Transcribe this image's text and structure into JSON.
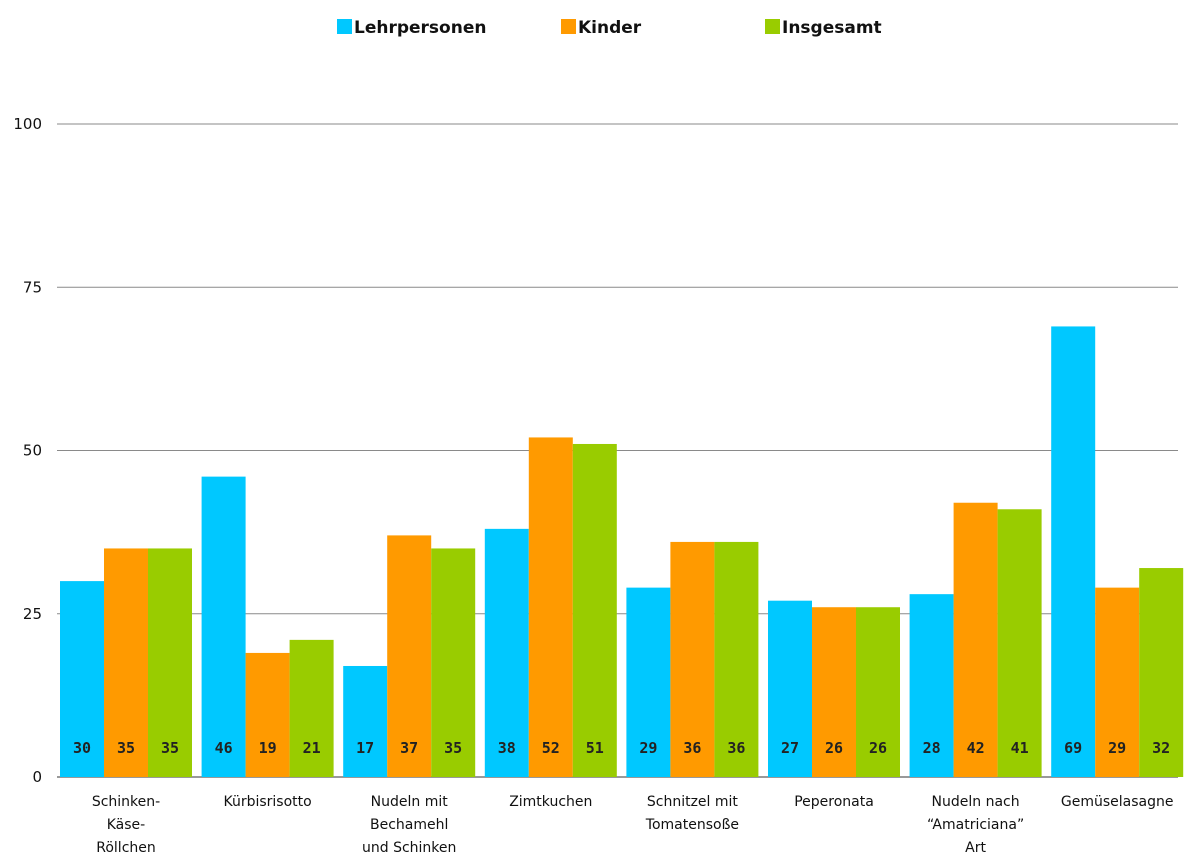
{
  "chart_data": {
    "type": "bar",
    "categories": [
      [
        "Schinken-",
        "Käse-",
        "Röllchen"
      ],
      [
        "Kürbisrisotto"
      ],
      [
        "Nudeln  mit",
        "Bechamehl",
        "und Schinken"
      ],
      [
        "Zimtkuchen"
      ],
      [
        "Schnitzel  mit",
        "Tomatensoße"
      ],
      [
        "Peperonata"
      ],
      [
        "Nudeln  nach",
        "“Amatriciana”",
        "Art"
      ],
      [
        "Gemüselasagne"
      ]
    ],
    "series": [
      {
        "name": "Lehrpersonen",
        "color": "#00c8ff",
        "values": [
          30,
          46,
          17,
          38,
          29,
          27,
          28,
          69
        ]
      },
      {
        "name": "Kinder",
        "color": "#ff9a00",
        "values": [
          35,
          19,
          37,
          52,
          36,
          26,
          42,
          29
        ]
      },
      {
        "name": "Insgesamt",
        "color": "#99cc00",
        "values": [
          35,
          21,
          35,
          51,
          36,
          26,
          41,
          32
        ]
      }
    ],
    "ylim": [
      0,
      100
    ],
    "yticks": [
      "0",
      "25",
      "50",
      "75",
      "100"
    ],
    "grid": true,
    "legend_position": "top-center"
  }
}
